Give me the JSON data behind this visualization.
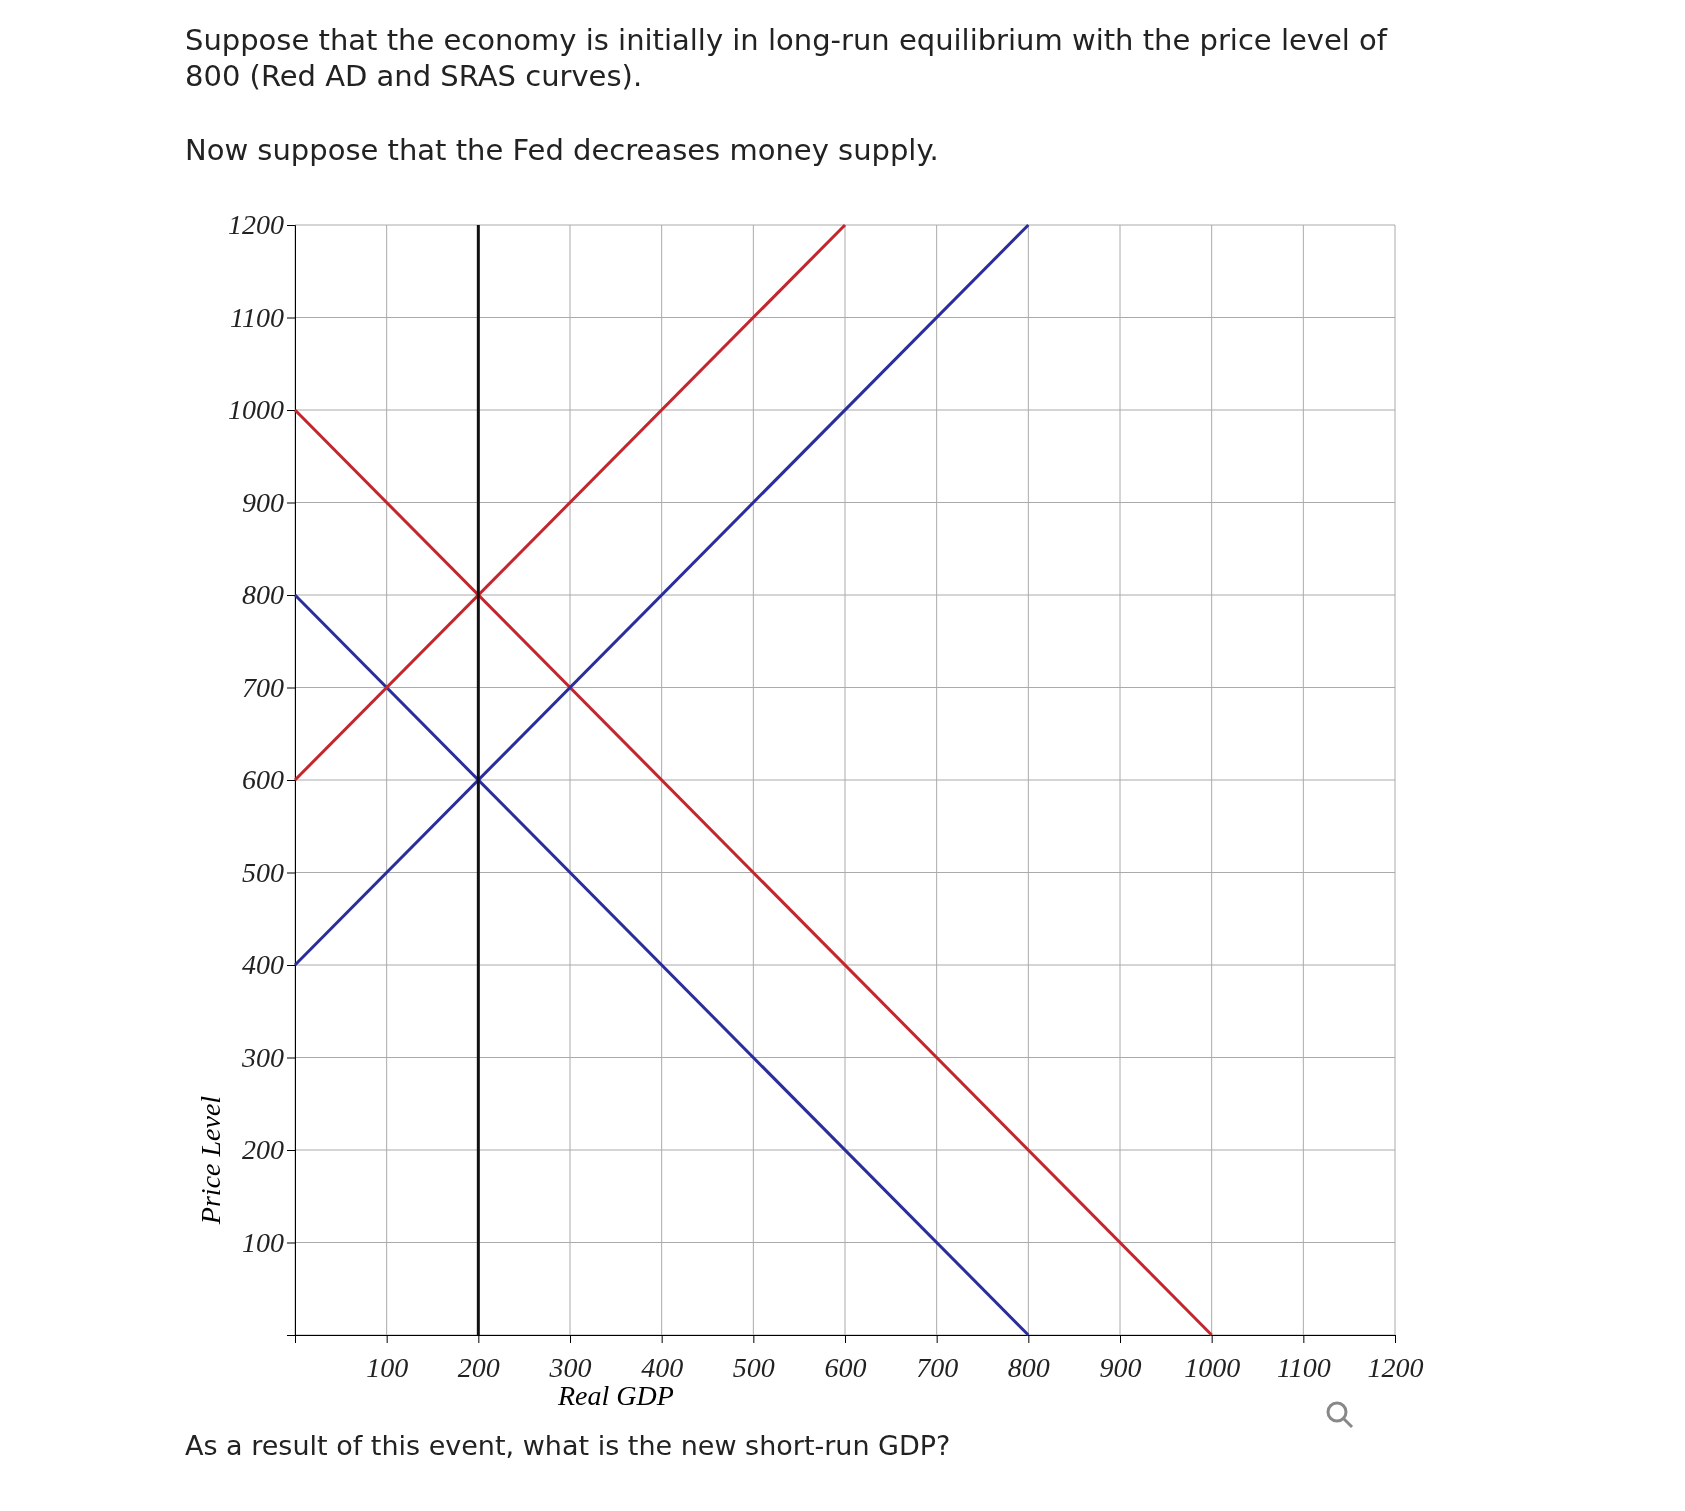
{
  "chart_data": {
    "type": "line",
    "title": "Suppose that the economy is initially in long-run equilibrium with the price level of 800 (Red AD and SRAS curves).",
    "subtitle": "Now suppose that the Fed decreases money supply.",
    "xlabel": "Real GDP",
    "ylabel": "Price Level",
    "annotations": [
      "As a result of this event, what is the new short-run GDP?"
    ],
    "xlim": [
      0,
      1200
    ],
    "ylim": [
      0,
      1200
    ],
    "xticks": [
      {
        "value": 0,
        "label": null
      },
      100,
      200,
      300,
      400,
      500,
      600,
      700,
      800,
      900,
      1000,
      1100,
      1200
    ],
    "yticks": [
      {
        "value": 0,
        "label": null
      },
      100,
      200,
      300,
      400,
      500,
      600,
      700,
      800,
      900,
      1000,
      1100,
      1200
    ],
    "grid": true,
    "marker": "none",
    "line_style": "solid",
    "series": [
      {
        "color": "#c4262e",
        "x": [
          0,
          1000
        ],
        "values": [
          1000,
          0
        ]
      },
      {
        "color": "#2a2e9c",
        "x": [
          0,
          800
        ],
        "values": [
          800,
          0
        ]
      },
      {
        "color": "#c4262e",
        "x": [
          0,
          600
        ],
        "values": [
          600,
          1200
        ]
      },
      {
        "color": "#2a2e9c",
        "x": [
          0,
          800
        ],
        "values": [
          400,
          1200
        ]
      },
      {
        "color": "#111111",
        "x": [
          200,
          200
        ],
        "values": [
          0,
          1200
        ]
      }
    ]
  }
}
